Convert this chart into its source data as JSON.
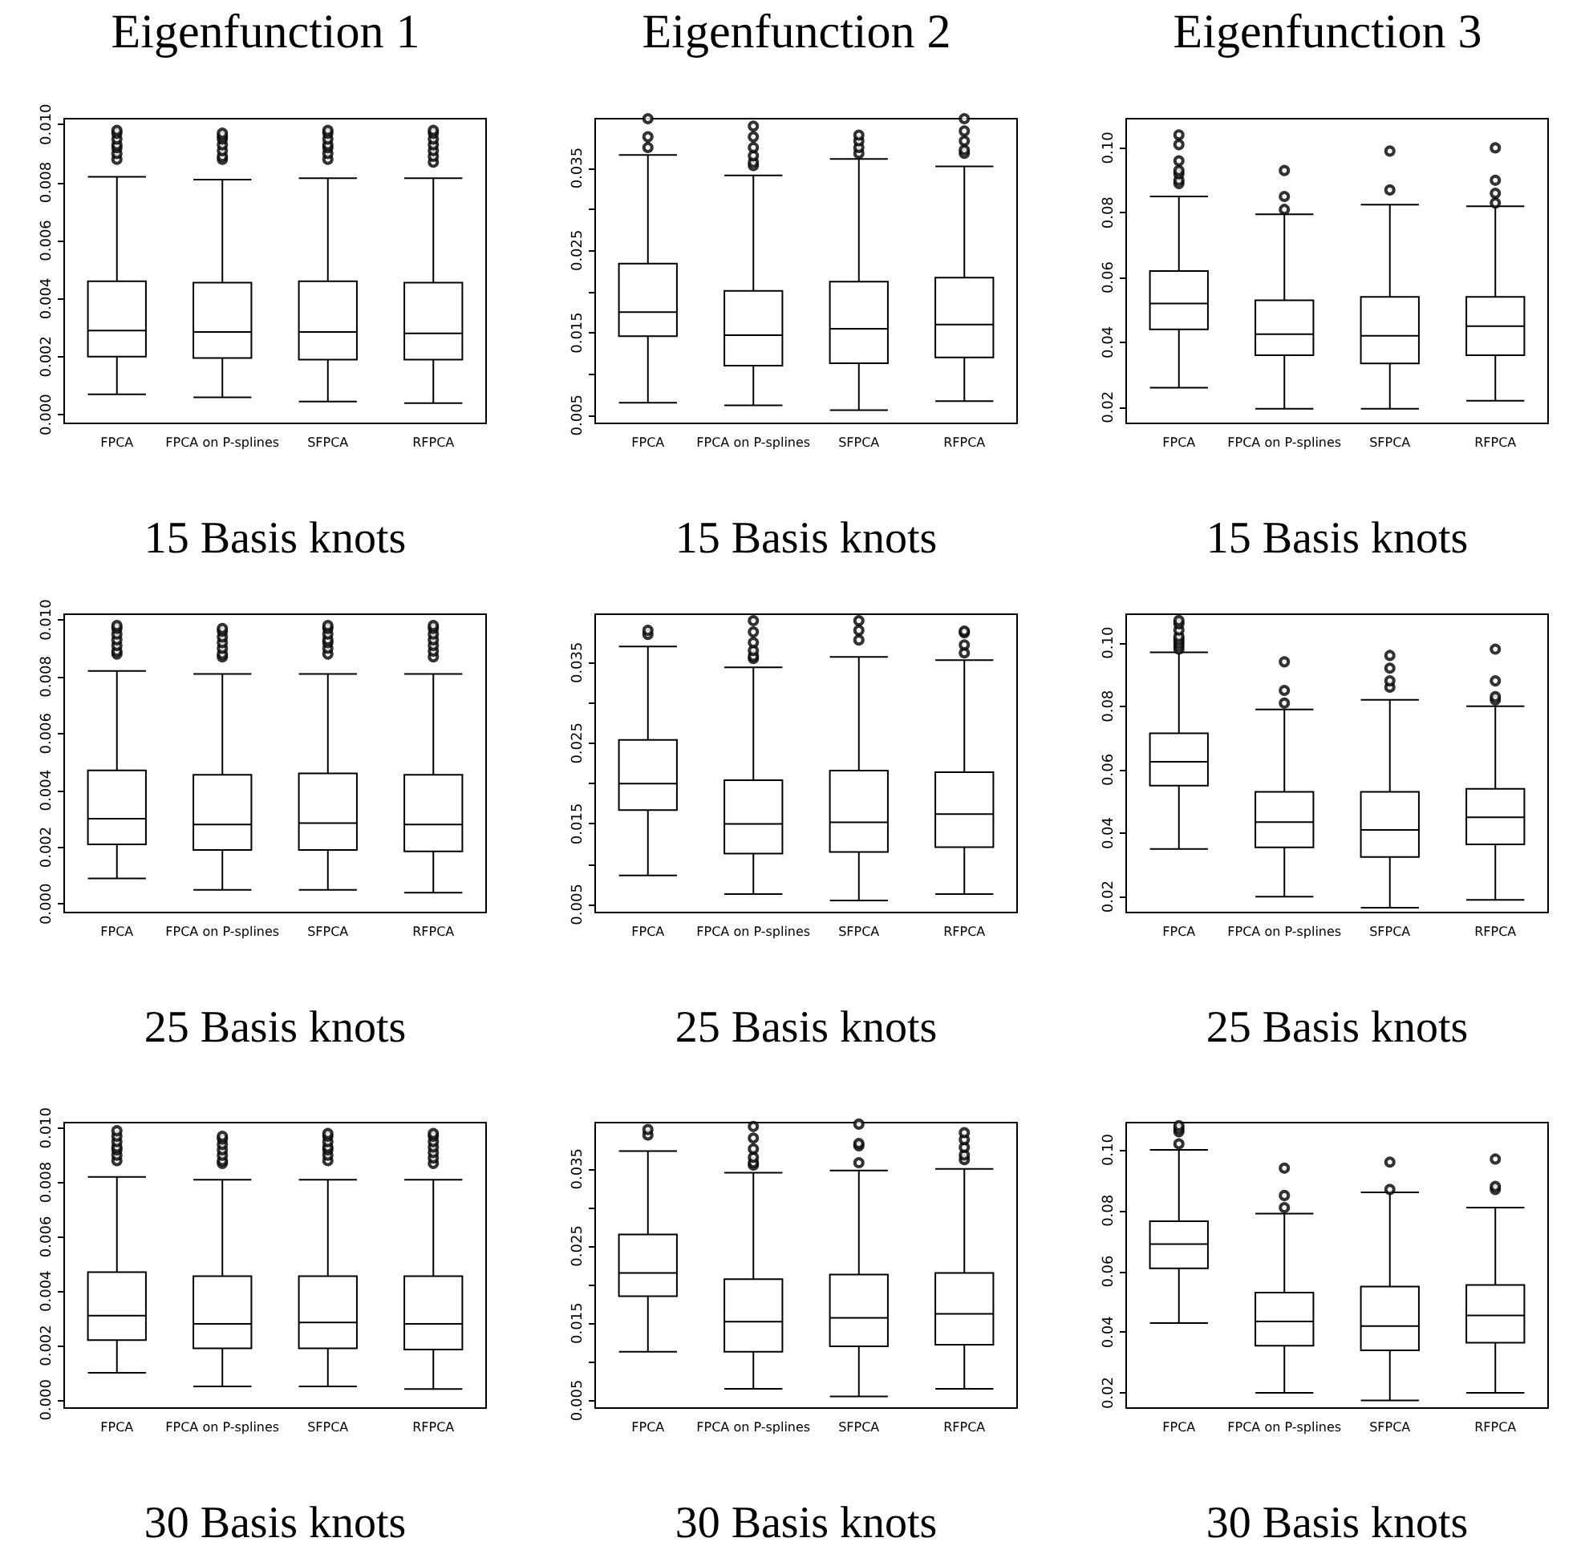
{
  "chart_data": [
    {
      "type": "box",
      "title": "Eigenfunction 1",
      "xlabel": "15 Basis knots",
      "categories": [
        "FPCA",
        "FPCA on P-splines",
        "SFPCA",
        "RFPCA"
      ],
      "ylim": [
        -0.0003,
        0.0102
      ],
      "yticks": [
        {
          "value": 0,
          "label": "0.000"
        },
        {
          "value": 0.002,
          "label": "0.002"
        },
        {
          "value": 0.004,
          "label": "0.004"
        },
        {
          "value": 0.006,
          "label": "0.006"
        },
        {
          "value": 0.008,
          "label": "0.008"
        },
        {
          "value": 0.01,
          "label": "0.010"
        }
      ],
      "boxes": [
        {
          "low": 0.0007,
          "q1": 0.002,
          "median": 0.0029,
          "q3": 0.0046,
          "high": 0.0082,
          "outliers": [
            0.0088,
            0.009,
            0.0092,
            0.0093,
            0.0095,
            0.0097,
            0.0098
          ]
        },
        {
          "low": 0.0006,
          "q1": 0.00195,
          "median": 0.00285,
          "q3": 0.00455,
          "high": 0.0081,
          "outliers": [
            0.0088,
            0.0089,
            0.0091,
            0.0093,
            0.0095,
            0.0096,
            0.0097
          ]
        },
        {
          "low": 0.00045,
          "q1": 0.0019,
          "median": 0.00285,
          "q3": 0.0046,
          "high": 0.00815,
          "outliers": [
            0.0088,
            0.009,
            0.0092,
            0.0093,
            0.0095,
            0.0097,
            0.0098
          ]
        },
        {
          "low": 0.0004,
          "q1": 0.0019,
          "median": 0.0028,
          "q3": 0.00455,
          "high": 0.00815,
          "outliers": [
            0.0087,
            0.0089,
            0.0091,
            0.0093,
            0.0095,
            0.0097,
            0.0098
          ]
        }
      ]
    },
    {
      "type": "box",
      "title": "Eigenfunction 2",
      "xlabel": "15 Basis knots",
      "categories": [
        "FPCA",
        "FPCA on P-splines",
        "SFPCA",
        "RFPCA"
      ],
      "ylim": [
        0.004,
        0.041
      ],
      "yticks": [
        {
          "value": 0.005,
          "label": "0.005"
        },
        {
          "value": 0.01,
          "label": null
        },
        {
          "value": 0.015,
          "label": "0.015"
        },
        {
          "value": 0.02,
          "label": null
        },
        {
          "value": 0.025,
          "label": "0.025"
        },
        {
          "value": 0.03,
          "label": null
        },
        {
          "value": 0.035,
          "label": "0.035"
        }
      ],
      "boxes": [
        {
          "low": 0.0065,
          "q1": 0.0146,
          "median": 0.0175,
          "q3": 0.0234,
          "high": 0.0366,
          "outliers": [
            0.0375,
            0.0388,
            0.041
          ]
        },
        {
          "low": 0.0062,
          "q1": 0.011,
          "median": 0.0147,
          "q3": 0.0201,
          "high": 0.0341,
          "outliers": [
            0.0353,
            0.0357,
            0.0365,
            0.0375,
            0.0388,
            0.0401
          ]
        },
        {
          "low": 0.0056,
          "q1": 0.0113,
          "median": 0.0155,
          "q3": 0.0212,
          "high": 0.0361,
          "outliers": [
            0.0368,
            0.0375,
            0.0383,
            0.039
          ]
        },
        {
          "low": 0.0067,
          "q1": 0.012,
          "median": 0.016,
          "q3": 0.0217,
          "high": 0.0352,
          "outliers": [
            0.0368,
            0.0372,
            0.0383,
            0.0395,
            0.041
          ]
        }
      ]
    },
    {
      "type": "box",
      "title": "Eigenfunction 3",
      "xlabel": "15 Basis knots",
      "categories": [
        "FPCA",
        "FPCA on P-splines",
        "SFPCA",
        "RFPCA"
      ],
      "ylim": [
        0.015,
        0.109
      ],
      "yticks": [
        {
          "value": 0.02,
          "label": "0.02"
        },
        {
          "value": 0.04,
          "label": "0.04"
        },
        {
          "value": 0.06,
          "label": "0.06"
        },
        {
          "value": 0.08,
          "label": "0.08"
        },
        {
          "value": 0.1,
          "label": "0.10"
        }
      ],
      "boxes": [
        {
          "low": 0.026,
          "q1": 0.044,
          "median": 0.052,
          "q3": 0.062,
          "high": 0.085,
          "outliers": [
            0.089,
            0.09,
            0.092,
            0.093,
            0.096,
            0.101,
            0.104
          ]
        },
        {
          "low": 0.0195,
          "q1": 0.036,
          "median": 0.0425,
          "q3": 0.053,
          "high": 0.0795,
          "outliers": [
            0.081,
            0.085,
            0.093
          ]
        },
        {
          "low": 0.0195,
          "q1": 0.0335,
          "median": 0.042,
          "q3": 0.054,
          "high": 0.0825,
          "outliers": [
            0.087,
            0.099
          ]
        },
        {
          "low": 0.022,
          "q1": 0.036,
          "median": 0.045,
          "q3": 0.054,
          "high": 0.082,
          "outliers": [
            0.083,
            0.086,
            0.09,
            0.1
          ]
        }
      ]
    },
    {
      "type": "box",
      "xlabel": "25 Basis knots",
      "categories": [
        "FPCA",
        "FPCA on P-splines",
        "SFPCA",
        "RFPCA"
      ],
      "ylim": [
        -0.0003,
        0.0102
      ],
      "yticks": [
        {
          "value": 0,
          "label": "0.000"
        },
        {
          "value": 0.002,
          "label": "0.002"
        },
        {
          "value": 0.004,
          "label": "0.004"
        },
        {
          "value": 0.006,
          "label": "0.006"
        },
        {
          "value": 0.008,
          "label": "0.008"
        },
        {
          "value": 0.01,
          "label": "0.010"
        }
      ],
      "boxes": [
        {
          "low": 0.0009,
          "q1": 0.0021,
          "median": 0.003,
          "q3": 0.0047,
          "high": 0.0082,
          "outliers": [
            0.0088,
            0.0089,
            0.0091,
            0.0093,
            0.0095,
            0.0097,
            0.0098
          ]
        },
        {
          "low": 0.0005,
          "q1": 0.0019,
          "median": 0.0028,
          "q3": 0.00455,
          "high": 0.0081,
          "outliers": [
            0.0087,
            0.0088,
            0.009,
            0.0092,
            0.0094,
            0.0096,
            0.0097
          ]
        },
        {
          "low": 0.0005,
          "q1": 0.0019,
          "median": 0.00285,
          "q3": 0.0046,
          "high": 0.0081,
          "outliers": [
            0.0088,
            0.009,
            0.0092,
            0.0093,
            0.0095,
            0.0097,
            0.0098
          ]
        },
        {
          "low": 0.0004,
          "q1": 0.00185,
          "median": 0.0028,
          "q3": 0.00455,
          "high": 0.0081,
          "outliers": [
            0.0087,
            0.0089,
            0.0091,
            0.0093,
            0.0095,
            0.0097,
            0.0098
          ]
        }
      ]
    },
    {
      "type": "box",
      "xlabel": "25 Basis knots",
      "categories": [
        "FPCA",
        "FPCA on P-splines",
        "SFPCA",
        "RFPCA"
      ],
      "ylim": [
        0.004,
        0.041
      ],
      "yticks": [
        {
          "value": 0.005,
          "label": "0.005"
        },
        {
          "value": 0.01,
          "label": null
        },
        {
          "value": 0.015,
          "label": "0.015"
        },
        {
          "value": 0.02,
          "label": null
        },
        {
          "value": 0.025,
          "label": "0.025"
        },
        {
          "value": 0.03,
          "label": null
        },
        {
          "value": 0.035,
          "label": "0.035"
        }
      ],
      "boxes": [
        {
          "low": 0.0086,
          "q1": 0.0167,
          "median": 0.02,
          "q3": 0.0254,
          "high": 0.037,
          "outliers": [
            0.0385,
            0.039
          ]
        },
        {
          "low": 0.0063,
          "q1": 0.0113,
          "median": 0.015,
          "q3": 0.0204,
          "high": 0.0344,
          "outliers": [
            0.0355,
            0.0358,
            0.0365,
            0.0375,
            0.0388,
            0.0402
          ]
        },
        {
          "low": 0.0055,
          "q1": 0.0115,
          "median": 0.0152,
          "q3": 0.0216,
          "high": 0.0357,
          "outliers": [
            0.0378,
            0.039,
            0.0402
          ]
        },
        {
          "low": 0.0063,
          "q1": 0.0121,
          "median": 0.0162,
          "q3": 0.0214,
          "high": 0.0353,
          "outliers": [
            0.0362,
            0.0372,
            0.0387,
            0.0389
          ]
        }
      ]
    },
    {
      "type": "box",
      "xlabel": "25 Basis knots",
      "categories": [
        "FPCA",
        "FPCA on P-splines",
        "SFPCA",
        "RFPCA"
      ],
      "ylim": [
        0.015,
        0.109
      ],
      "yticks": [
        {
          "value": 0.02,
          "label": "0.02"
        },
        {
          "value": 0.04,
          "label": "0.04"
        },
        {
          "value": 0.06,
          "label": "0.06"
        },
        {
          "value": 0.08,
          "label": "0.08"
        },
        {
          "value": 0.1,
          "label": "0.10"
        }
      ],
      "boxes": [
        {
          "low": 0.035,
          "q1": 0.055,
          "median": 0.0625,
          "q3": 0.0715,
          "high": 0.097,
          "outliers": [
            0.098,
            0.099,
            0.1,
            0.101,
            0.102,
            0.104,
            0.106,
            0.107
          ]
        },
        {
          "low": 0.02,
          "q1": 0.0355,
          "median": 0.0435,
          "q3": 0.053,
          "high": 0.079,
          "outliers": [
            0.081,
            0.085,
            0.094
          ]
        },
        {
          "low": 0.0165,
          "q1": 0.0325,
          "median": 0.041,
          "q3": 0.053,
          "high": 0.082,
          "outliers": [
            0.086,
            0.088,
            0.092,
            0.096
          ]
        },
        {
          "low": 0.019,
          "q1": 0.0365,
          "median": 0.045,
          "q3": 0.054,
          "high": 0.08,
          "outliers": [
            0.082,
            0.083,
            0.088,
            0.098
          ]
        }
      ]
    },
    {
      "type": "box",
      "xlabel": "30 Basis knots",
      "categories": [
        "FPCA",
        "FPCA on P-splines",
        "SFPCA",
        "RFPCA"
      ],
      "ylim": [
        -0.0003,
        0.0102
      ],
      "yticks": [
        {
          "value": 0,
          "label": "0.000"
        },
        {
          "value": 0.002,
          "label": "0.002"
        },
        {
          "value": 0.004,
          "label": "0.004"
        },
        {
          "value": 0.006,
          "label": "0.006"
        },
        {
          "value": 0.008,
          "label": "0.008"
        },
        {
          "value": 0.01,
          "label": "0.010"
        }
      ],
      "boxes": [
        {
          "low": 0.001,
          "q1": 0.0022,
          "median": 0.0031,
          "q3": 0.0047,
          "high": 0.0082,
          "outliers": [
            0.0088,
            0.009,
            0.0092,
            0.0093,
            0.0095,
            0.0097,
            0.0099
          ]
        },
        {
          "low": 0.0005,
          "q1": 0.0019,
          "median": 0.0028,
          "q3": 0.00455,
          "high": 0.0081,
          "outliers": [
            0.0087,
            0.0088,
            0.009,
            0.0092,
            0.0094,
            0.0096,
            0.0097
          ]
        },
        {
          "low": 0.0005,
          "q1": 0.0019,
          "median": 0.00285,
          "q3": 0.00455,
          "high": 0.0081,
          "outliers": [
            0.0088,
            0.009,
            0.0092,
            0.0093,
            0.0095,
            0.0097,
            0.0098
          ]
        },
        {
          "low": 0.0004,
          "q1": 0.00185,
          "median": 0.0028,
          "q3": 0.00455,
          "high": 0.0081,
          "outliers": [
            0.0087,
            0.0089,
            0.0091,
            0.0093,
            0.0095,
            0.0097,
            0.0098
          ]
        }
      ]
    },
    {
      "type": "box",
      "xlabel": "30 Basis knots",
      "categories": [
        "FPCA",
        "FPCA on P-splines",
        "SFPCA",
        "RFPCA"
      ],
      "ylim": [
        0.004,
        0.041
      ],
      "yticks": [
        {
          "value": 0.005,
          "label": "0.005"
        },
        {
          "value": 0.01,
          "label": null
        },
        {
          "value": 0.015,
          "label": "0.015"
        },
        {
          "value": 0.02,
          "label": null
        },
        {
          "value": 0.025,
          "label": "0.025"
        },
        {
          "value": 0.03,
          "label": null
        },
        {
          "value": 0.035,
          "label": "0.035"
        }
      ],
      "boxes": [
        {
          "low": 0.0113,
          "q1": 0.0185,
          "median": 0.0215,
          "q3": 0.0265,
          "high": 0.0373,
          "outliers": [
            0.0394,
            0.0401
          ]
        },
        {
          "low": 0.0065,
          "q1": 0.0113,
          "median": 0.0152,
          "q3": 0.0207,
          "high": 0.0345,
          "outliers": [
            0.0355,
            0.0358,
            0.0365,
            0.0376,
            0.039,
            0.0405
          ]
        },
        {
          "low": 0.0055,
          "q1": 0.012,
          "median": 0.0157,
          "q3": 0.0213,
          "high": 0.0348,
          "outliers": [
            0.0358,
            0.038,
            0.0383,
            0.0408
          ]
        },
        {
          "low": 0.0065,
          "q1": 0.0122,
          "median": 0.0162,
          "q3": 0.0215,
          "high": 0.035,
          "outliers": [
            0.0362,
            0.0368,
            0.0378,
            0.0388,
            0.0397
          ]
        }
      ]
    },
    {
      "type": "box",
      "xlabel": "30 Basis knots",
      "categories": [
        "FPCA",
        "FPCA on P-splines",
        "SFPCA",
        "RFPCA"
      ],
      "ylim": [
        0.015,
        0.109
      ],
      "yticks": [
        {
          "value": 0.02,
          "label": "0.02"
        },
        {
          "value": 0.04,
          "label": "0.04"
        },
        {
          "value": 0.06,
          "label": "0.06"
        },
        {
          "value": 0.08,
          "label": "0.08"
        },
        {
          "value": 0.1,
          "label": "0.10"
        }
      ],
      "boxes": [
        {
          "low": 0.043,
          "q1": 0.061,
          "median": 0.069,
          "q3": 0.0765,
          "high": 0.1,
          "outliers": [
            0.102,
            0.106,
            0.107,
            0.108
          ]
        },
        {
          "low": 0.02,
          "q1": 0.0355,
          "median": 0.0435,
          "q3": 0.053,
          "high": 0.079,
          "outliers": [
            0.081,
            0.085,
            0.094
          ]
        },
        {
          "low": 0.0175,
          "q1": 0.034,
          "median": 0.042,
          "q3": 0.055,
          "high": 0.086,
          "outliers": [
            0.087,
            0.096
          ]
        },
        {
          "low": 0.02,
          "q1": 0.0365,
          "median": 0.0455,
          "q3": 0.0555,
          "high": 0.081,
          "outliers": [
            0.087,
            0.088,
            0.097
          ]
        }
      ]
    }
  ]
}
